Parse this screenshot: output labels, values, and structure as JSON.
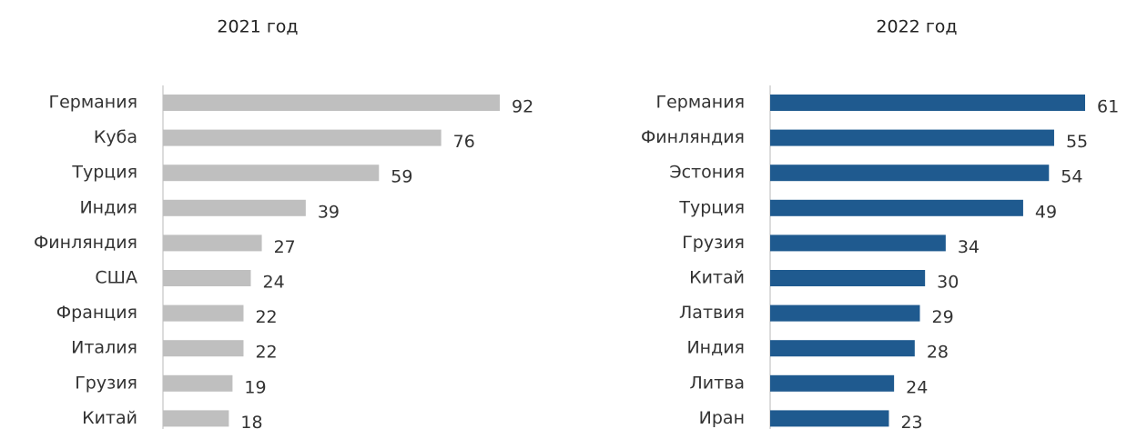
{
  "chart_data": [
    {
      "type": "bar",
      "orientation": "horizontal",
      "title": "2021 год",
      "categories": [
        "Германия",
        "Куба",
        "Турция",
        "Индия",
        "Финляндия",
        "США",
        "Франция",
        "Италия",
        "Грузия",
        "Китай"
      ],
      "values": [
        92,
        76,
        59,
        39,
        27,
        24,
        22,
        22,
        19,
        18
      ],
      "color": "#bfbfbf"
    },
    {
      "type": "bar",
      "orientation": "horizontal",
      "title": "2022 год",
      "categories": [
        "Германия",
        "Финляндия",
        "Эстония",
        "Турция",
        "Грузия",
        "Китай",
        "Латвия",
        "Индия",
        "Литва",
        "Иран"
      ],
      "values": [
        61,
        55,
        54,
        49,
        34,
        30,
        29,
        28,
        24,
        23
      ],
      "color": "#1f5a8f"
    }
  ]
}
